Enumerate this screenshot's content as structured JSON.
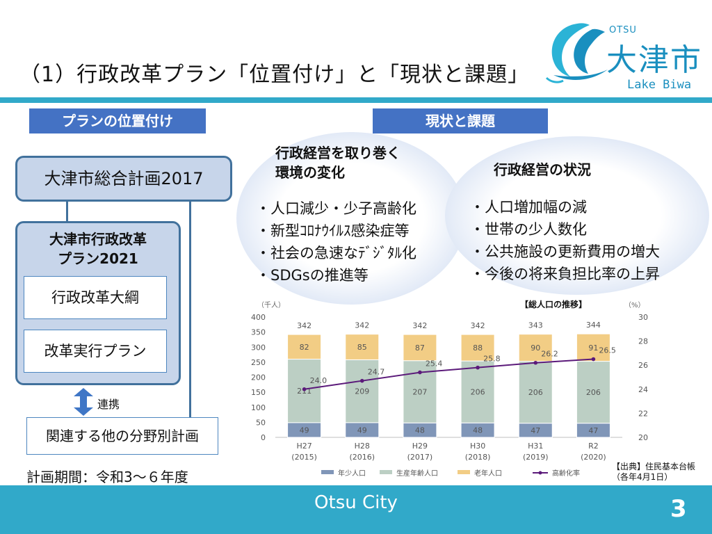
{
  "slide": {
    "title": "（1）行政改革プラン「位置付け」と「現状と課題」"
  },
  "logo": {
    "otsu": "OTSU",
    "city": "大津市",
    "lake": "Lake Biwa"
  },
  "left": {
    "header": "プランの位置付け",
    "general_plan": "大津市総合計画2017",
    "reform_plan_line1": "大津市行政改革",
    "reform_plan_line2": "プラン2021",
    "outline": "行政改革大綱",
    "execution_plan": "改革実行プラン",
    "link_label": "連携",
    "other_plans": "関連する他の分野別計画",
    "period": "計画期間：令和3～６年度"
  },
  "right": {
    "header": "現状と課題",
    "env_title_line1": "行政経営を取り巻く",
    "env_title_line2": "環境の変化",
    "env_items": [
      "・人口減少・少子高齢化",
      "・新型ｺﾛﾅｳｲﾙｽ感染症等",
      "・社会の急速なﾃﾞｼﾞﾀﾙ化",
      "・SDGsの推進等"
    ],
    "status_title": "行政経営の状況",
    "status_items": [
      "・人口増加幅の減",
      "・世帯の少人数化",
      "・公共施設の更新費用の増大",
      "・今後の将来負担比率の上昇"
    ]
  },
  "chart_data": {
    "type": "bar",
    "stacked": true,
    "title": "【総人口の推移】",
    "left_unit": "（千人）",
    "right_unit": "（%）",
    "categories": [
      "H27",
      "H28",
      "H29",
      "H30",
      "H31",
      "R2"
    ],
    "sub_categories": [
      "(2015)",
      "(2016)",
      "(2017)",
      "(2018)",
      "(2019)",
      "(2020)"
    ],
    "ylim": [
      0,
      400
    ],
    "y_ticks": [
      0,
      50,
      100,
      150,
      200,
      250,
      300,
      350,
      400
    ],
    "y2lim": [
      20,
      30
    ],
    "y2_ticks": [
      20,
      22,
      24,
      26,
      28,
      30
    ],
    "totals": [
      342,
      342,
      342,
      342,
      343,
      344
    ],
    "series": [
      {
        "name": "年少人口",
        "values": [
          49,
          49,
          48,
          48,
          47,
          47
        ],
        "color": "#8096b8"
      },
      {
        "name": "生産年齢人口",
        "values": [
          211,
          209,
          207,
          206,
          206,
          206
        ],
        "color": "#bccfc4"
      },
      {
        "name": "老年人口",
        "values": [
          82,
          85,
          87,
          88,
          90,
          91
        ],
        "color": "#f2cd85"
      },
      {
        "name": "高齢化率",
        "values": [
          24.0,
          24.7,
          25.4,
          25.8,
          26.2,
          26.5
        ],
        "color": "#5b1a7a",
        "type": "line",
        "axis": "right"
      }
    ],
    "grid": false,
    "legend": "bottom"
  },
  "source": {
    "line1": "【出典】住民基本台帳",
    "line2": "（各年4月1日）"
  },
  "footer": {
    "label": "Otsu City",
    "page": "3"
  }
}
